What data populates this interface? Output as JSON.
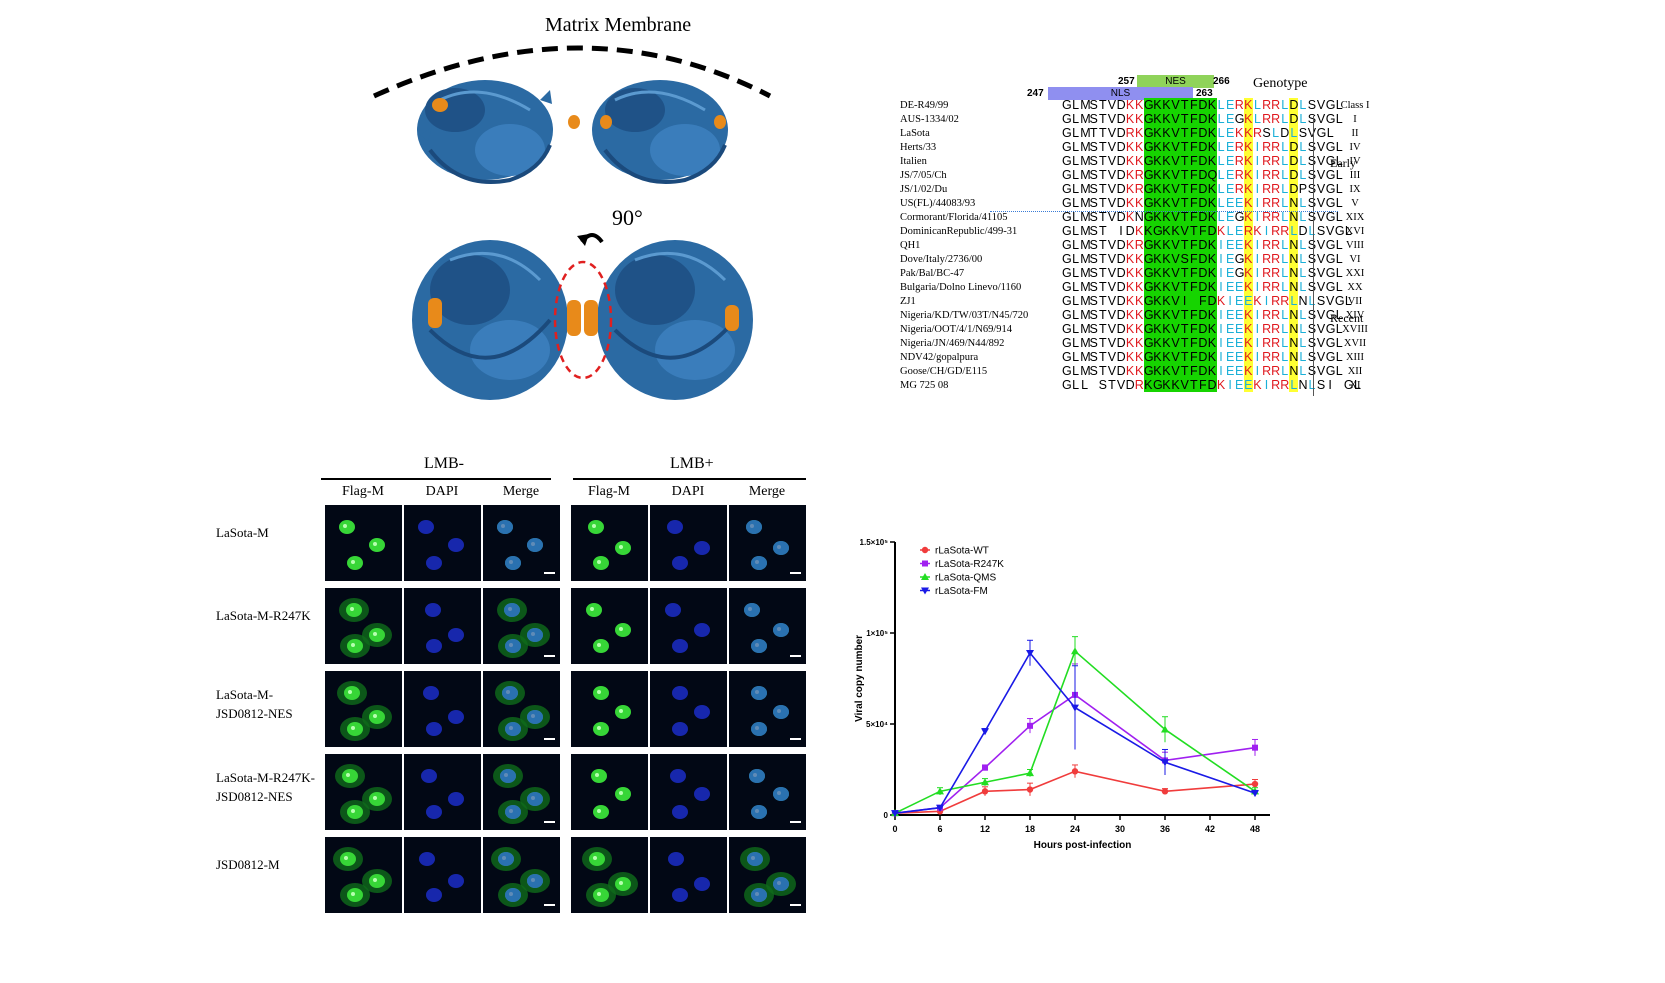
{
  "structure": {
    "title": "Matrix Membrane",
    "rotation_label": "90°"
  },
  "alignment": {
    "genotype_header": "Genotype",
    "regions": {
      "nes_label": "NES",
      "nls_label": "NLS",
      "nes_start": "257",
      "nes_end": "266",
      "nls_start": "247",
      "nls_end": "263"
    },
    "group_labels": [
      "Early",
      "Recent"
    ],
    "rows": [
      {
        "strain": "DE-R49/99",
        "seq": "GLMSTVDKKGKKVTFDKLERKLRRLDLSVGL",
        "genotype": "Class I"
      },
      {
        "strain": "AUS-1334/02",
        "seq": "GLMSTVDKKGKKVTFDKLEGKLRRLDLSVGL",
        "genotype": "I"
      },
      {
        "strain": "LaSota",
        "seq": "GLMTTVDRKGKKVTFDKLEKKRSLDLSVGL",
        "genotype": "II"
      },
      {
        "strain": "Herts/33",
        "seq": "GLMSTVDKKGKKVTFDKLERKIRRLDLSVGL",
        "genotype": "IV"
      },
      {
        "strain": "Italien",
        "seq": "GLMSTVDKKGKKVTFDKLERKIRRLDLSVGL",
        "genotype": "IV"
      },
      {
        "strain": "JS/7/05/Ch",
        "seq": "GLMSTVDKRGKKVTFDQLERKIRRLDLSVGL",
        "genotype": "III"
      },
      {
        "strain": "JS/1/02/Du",
        "seq": "GLMSTVDKRGKKVTFDKLERKIRRLDPSVGL",
        "genotype": "IX"
      },
      {
        "strain": "US(FL)/44083/93",
        "seq": "GLMSTVDKKGKKVTFDKLEEKIRRLNLSVGL",
        "genotype": "V"
      },
      {
        "strain": "Cormorant/Florida/41105",
        "seq": "GLMSTVDKNGKKVTFDKLEGKIRRLNLSVGL",
        "genotype": "XIX"
      },
      {
        "strain": "DominicanRepublic/499-31",
        "seq": "GLMST IDKKGKKVTFDKLERKIRRLDLSVGL",
        "genotype": "XVI"
      },
      {
        "strain": "QH1",
        "seq": "GLMSTVDKRGKKVTFDKIEEKIRRLNLSVGL",
        "genotype": "VIII"
      },
      {
        "strain": "Dove/Italy/2736/00",
        "seq": "GLMSTVDKKGKKVSFDKIEGKIRRLNLSVGL",
        "genotype": "VI"
      },
      {
        "strain": "Pak/Bal/BC-47",
        "seq": "GLMSTVDKKGKKVTFDKIEGKIRRLNLSVGL",
        "genotype": "XXI"
      },
      {
        "strain": "Bulgaria/Dolno Linevo/1160",
        "seq": "GLMSTVDKKGKKVTFDKIEEKIRRLNLSVGL",
        "genotype": "XX"
      },
      {
        "strain": "ZJ1",
        "seq": "GLMSTVDKKGKKVI FDKIEEKIRRLNLSVGL",
        "genotype": "VII"
      },
      {
        "strain": "Nigeria/KD/TW/03T/N45/720",
        "seq": "GLMSTVDKKGKKVTFDKIEEKIRRLNLSVGL",
        "genotype": "XIV"
      },
      {
        "strain": "Nigeria/OOT/4/1/N69/914",
        "seq": "GLMSTVDKKGKKVTFDKIEEKIRRLNLSVGL",
        "genotype": "XVIII"
      },
      {
        "strain": "Nigeria/JN/469/N44/892",
        "seq": "GLMSTVDKKGKKVTFDKIEEKIRRLNLSVGL",
        "genotype": "XVII"
      },
      {
        "strain": "NDV42/gopalpura",
        "seq": "GLMSTVDKKGKKVTFDKIEEKIRRLNLSVGL",
        "genotype": "XIII"
      },
      {
        "strain": "Goose/CH/GD/E115",
        "seq": "GLMSTVDKKGKKVTFDKIEEKIRRLNLSVGL",
        "genotype": "XII"
      },
      {
        "strain": "MG 725 08",
        "seq": "GLL STVDRKGKKVTFDKIEEKIRRLNLSI GL",
        "genotype": "XI"
      }
    ]
  },
  "microscopy": {
    "groups": [
      "LMB-",
      "LMB+"
    ],
    "columns": [
      "Flag-M",
      "DAPI",
      "Merge"
    ],
    "rows": [
      {
        "label": "LaSota-M"
      },
      {
        "label": "LaSota-M-R247K"
      },
      {
        "label": "LaSota-M-\nJSD0812-NES"
      },
      {
        "label": "LaSota-M-R247K-\nJSD0812-NES"
      },
      {
        "label": "JSD0812-M"
      }
    ]
  },
  "colors": {
    "protein": "#2b6aa3",
    "helix": "#e88a1a",
    "nls_bar": "#8f8ff0",
    "nes_bar": "#8fd35a"
  },
  "chart_data": {
    "type": "line",
    "xlabel": "Hours post-infection",
    "ylabel": "Viral copy number",
    "x_ticks": [
      0,
      6,
      12,
      18,
      24,
      30,
      36,
      42,
      48
    ],
    "y_ticks": [
      "0",
      "5×10⁴",
      "1×10⁵",
      "1.5×10⁵"
    ],
    "y_tick_values": [
      0,
      50000,
      100000,
      150000
    ],
    "xlim": [
      0,
      50
    ],
    "ylim": [
      0,
      150000
    ],
    "legend_position": "top-left",
    "series": [
      {
        "name": "rLaSota-WT",
        "color": "#f03c3c",
        "marker": "circle",
        "x": [
          0,
          6,
          12,
          18,
          24,
          36,
          48
        ],
        "y": [
          1000,
          2000,
          13000,
          14000,
          24000,
          13000,
          17000
        ],
        "err": [
          500,
          1000,
          2500,
          3500,
          3500,
          1500,
          2500
        ]
      },
      {
        "name": "rLaSota-R247K",
        "color": "#a020f0",
        "marker": "square",
        "x": [
          0,
          6,
          12,
          18,
          24,
          36,
          48
        ],
        "y": [
          1000,
          4000,
          26000,
          49000,
          66000,
          30000,
          37000
        ],
        "err": [
          500,
          1000,
          1500,
          4000,
          17000,
          4500,
          4500
        ]
      },
      {
        "name": "rLaSota-QMS",
        "color": "#22dd22",
        "marker": "triangle",
        "x": [
          0,
          6,
          12,
          18,
          24,
          36,
          48
        ],
        "y": [
          1000,
          13000,
          18000,
          23000,
          90000,
          47000,
          13000
        ],
        "err": [
          500,
          2000,
          2000,
          2000,
          8000,
          7000,
          2000
        ]
      },
      {
        "name": "rLaSota-FM",
        "color": "#1a1ae6",
        "marker": "triangle-down",
        "x": [
          0,
          6,
          12,
          18,
          24,
          36,
          48
        ],
        "y": [
          1000,
          4000,
          46000,
          89000,
          59000,
          29000,
          12000
        ],
        "err": [
          500,
          800,
          1500,
          7000,
          23000,
          7000,
          1500
        ]
      }
    ]
  }
}
